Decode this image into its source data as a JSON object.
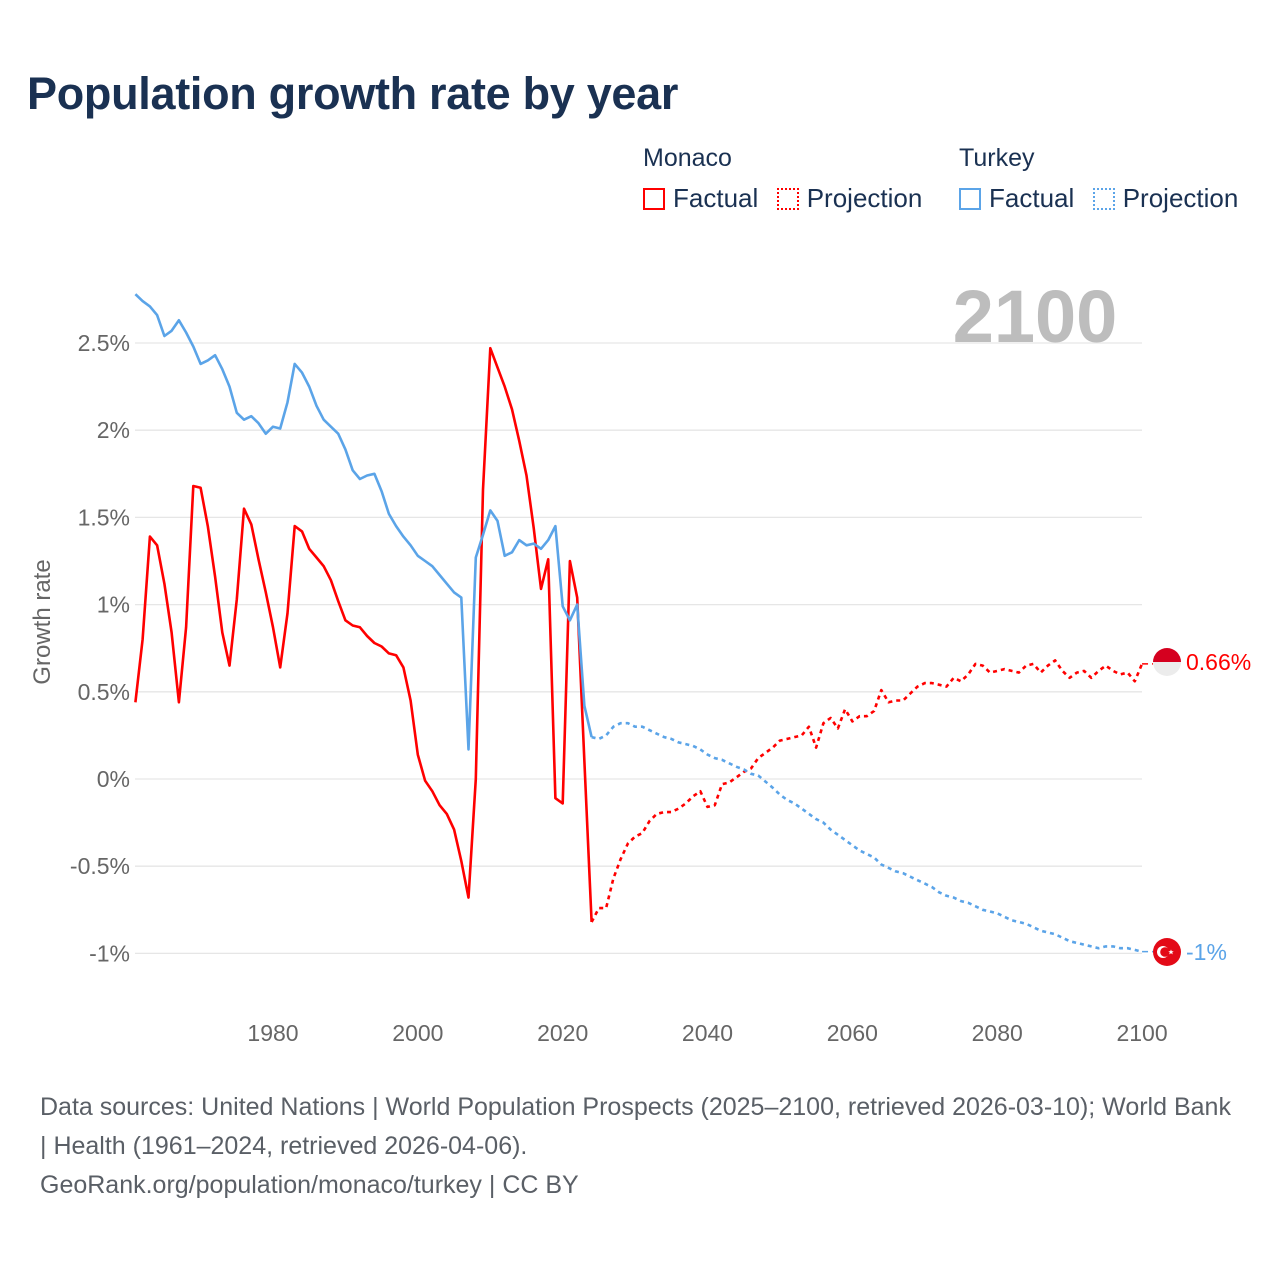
{
  "title": "Population growth rate by year",
  "legend": {
    "groups": [
      {
        "name": "Monaco",
        "factual": "Factual",
        "projection": "Projection",
        "color": "#ff0000"
      },
      {
        "name": "Turkey",
        "factual": "Factual",
        "projection": "Projection",
        "color": "#5ba4e8"
      }
    ]
  },
  "year_watermark": "2100",
  "end_labels": {
    "monaco": "0.66%",
    "turkey": "-1%"
  },
  "footer": {
    "sources": "Data sources: United Nations | World Population Prospects (2025–2100, retrieved 2026-03-10); World Bank | Health (1961–2024, retrieved 2026-04-06).",
    "credit": "GeoRank.org/population/monaco/turkey | CC BY"
  },
  "chart_data": {
    "type": "line",
    "title": "Population growth rate by year",
    "xlabel": "",
    "ylabel": "Growth rate",
    "xlim": [
      1961,
      2100
    ],
    "ylim": [
      -1,
      2.5
    ],
    "x_ticks": [
      1980,
      2000,
      2020,
      2040,
      2060,
      2080,
      2100
    ],
    "y_ticks": [
      {
        "v": 2.5,
        "label": "2.5%"
      },
      {
        "v": 2,
        "label": "2%"
      },
      {
        "v": 1.5,
        "label": "1.5%"
      },
      {
        "v": 1,
        "label": "1%"
      },
      {
        "v": 0.5,
        "label": "0.5%"
      },
      {
        "v": 0,
        "label": "0%"
      },
      {
        "v": -0.5,
        "label": "-0.5%"
      },
      {
        "v": -1,
        "label": "-1%"
      }
    ],
    "grid": true,
    "legend_position": "top-right",
    "series": [
      {
        "name": "Monaco",
        "kind": "factual",
        "color": "#ff0000",
        "start_year": 1961,
        "values": [
          0.44,
          0.8,
          1.39,
          1.34,
          1.12,
          0.84,
          0.44,
          0.87,
          1.68,
          1.67,
          1.45,
          1.16,
          0.84,
          0.65,
          1.03,
          1.55,
          1.46,
          1.26,
          1.07,
          0.87,
          0.64,
          0.95,
          1.45,
          1.42,
          1.32,
          1.27,
          1.22,
          1.14,
          1.02,
          0.91,
          0.88,
          0.87,
          0.82,
          0.78,
          0.76,
          0.72,
          0.71,
          0.64,
          0.45,
          0.14,
          -0.01,
          -0.07,
          -0.15,
          -0.2,
          -0.29,
          -0.47,
          -0.68,
          0.0,
          1.66,
          2.47,
          2.36,
          2.25,
          2.12,
          1.94,
          1.74,
          1.44,
          1.09,
          1.26,
          -0.11,
          -0.14,
          1.25,
          1.04,
          0.1,
          -0.82
        ]
      },
      {
        "name": "Monaco",
        "kind": "projection",
        "color": "#ff0000",
        "start_year": 2024,
        "values": [
          -0.82,
          -0.74,
          -0.74,
          -0.57,
          -0.46,
          -0.37,
          -0.33,
          -0.31,
          -0.24,
          -0.2,
          -0.19,
          -0.19,
          -0.17,
          -0.14,
          -0.1,
          -0.07,
          -0.16,
          -0.15,
          -0.03,
          -0.02,
          0.01,
          0.04,
          0.06,
          0.12,
          0.15,
          0.18,
          0.22,
          0.23,
          0.24,
          0.25,
          0.3,
          0.18,
          0.32,
          0.35,
          0.29,
          0.4,
          0.33,
          0.36,
          0.36,
          0.39,
          0.51,
          0.44,
          0.45,
          0.45,
          0.49,
          0.53,
          0.55,
          0.55,
          0.54,
          0.53,
          0.58,
          0.56,
          0.6,
          0.66,
          0.65,
          0.61,
          0.62,
          0.63,
          0.62,
          0.61,
          0.65,
          0.66,
          0.61,
          0.65,
          0.68,
          0.62,
          0.58,
          0.61,
          0.62,
          0.58,
          0.62,
          0.65,
          0.62,
          0.6,
          0.61,
          0.56,
          0.66
        ]
      },
      {
        "name": "Turkey",
        "kind": "factual",
        "color": "#5ba4e8",
        "start_year": 1961,
        "values": [
          2.78,
          2.74,
          2.71,
          2.66,
          2.54,
          2.57,
          2.63,
          2.56,
          2.48,
          2.38,
          2.4,
          2.43,
          2.35,
          2.25,
          2.1,
          2.06,
          2.08,
          2.04,
          1.98,
          2.02,
          2.01,
          2.16,
          2.38,
          2.33,
          2.25,
          2.14,
          2.06,
          2.02,
          1.98,
          1.89,
          1.77,
          1.72,
          1.74,
          1.75,
          1.65,
          1.52,
          1.45,
          1.39,
          1.34,
          1.28,
          1.25,
          1.22,
          1.17,
          1.12,
          1.07,
          1.04,
          0.17,
          1.27,
          1.4,
          1.54,
          1.48,
          1.28,
          1.3,
          1.37,
          1.34,
          1.35,
          1.32,
          1.37,
          1.45,
          0.99,
          0.91,
          1.0,
          0.42,
          0.24
        ]
      },
      {
        "name": "Turkey",
        "kind": "projection",
        "color": "#5ba4e8",
        "start_year": 2024,
        "values": [
          0.24,
          0.23,
          0.25,
          0.3,
          0.32,
          0.32,
          0.3,
          0.3,
          0.28,
          0.26,
          0.24,
          0.23,
          0.21,
          0.2,
          0.19,
          0.17,
          0.14,
          0.12,
          0.11,
          0.09,
          0.07,
          0.055,
          0.03,
          0.02,
          -0.015,
          -0.05,
          -0.09,
          -0.12,
          -0.14,
          -0.17,
          -0.2,
          -0.23,
          -0.25,
          -0.29,
          -0.32,
          -0.35,
          -0.38,
          -0.41,
          -0.43,
          -0.45,
          -0.49,
          -0.51,
          -0.53,
          -0.54,
          -0.56,
          -0.58,
          -0.6,
          -0.62,
          -0.65,
          -0.67,
          -0.68,
          -0.7,
          -0.71,
          -0.73,
          -0.75,
          -0.76,
          -0.77,
          -0.79,
          -0.81,
          -0.82,
          -0.83,
          -0.85,
          -0.87,
          -0.88,
          -0.89,
          -0.91,
          -0.93,
          -0.94,
          -0.95,
          -0.96,
          -0.97,
          -0.96,
          -0.96,
          -0.97,
          -0.97,
          -0.98,
          -0.99
        ]
      }
    ]
  }
}
